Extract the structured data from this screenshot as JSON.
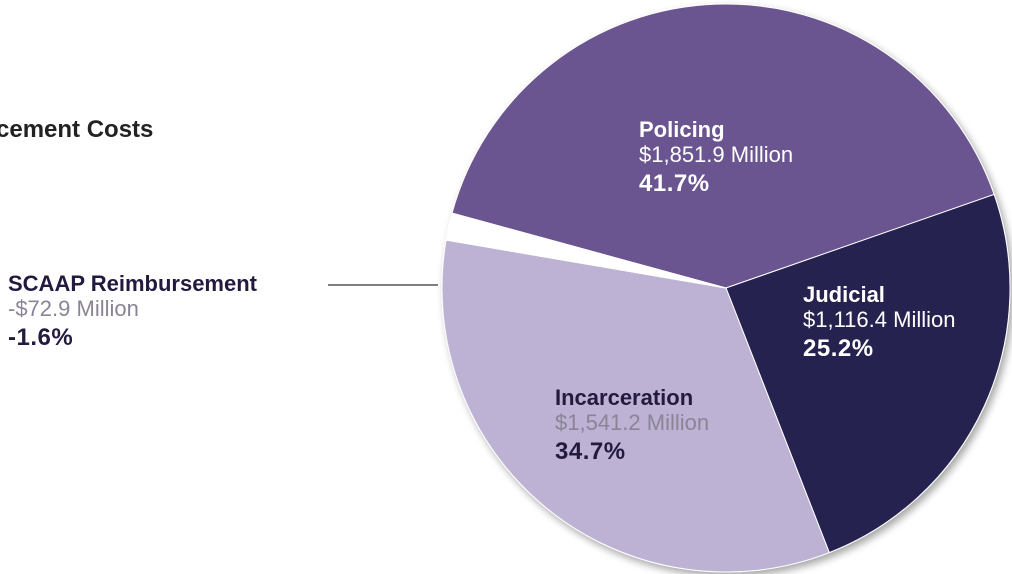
{
  "title": "cement Costs",
  "colors": {
    "policing": "#6b5590",
    "judicial": "#25204f",
    "incarceration": "#bdb2d4",
    "scaap": "#ffffff",
    "leader_line": "#333333"
  },
  "chart_data": {
    "type": "pie",
    "title": "cement Costs",
    "slices": [
      {
        "label": "Policing",
        "amount": "$1,851.9 Million",
        "percent_label": "41.7%",
        "value": 41.7
      },
      {
        "label": "Judicial",
        "amount": "$1,116.4 Million",
        "percent_label": "25.2%",
        "value": 25.2
      },
      {
        "label": "Incarceration",
        "amount": "$1,541.2 Million",
        "percent_label": "34.7%",
        "value": 34.7
      },
      {
        "label": "SCAAP Reimbursement",
        "amount": "-$72.9 Million",
        "percent_label": "-1.6%",
        "value": -1.6
      }
    ]
  }
}
